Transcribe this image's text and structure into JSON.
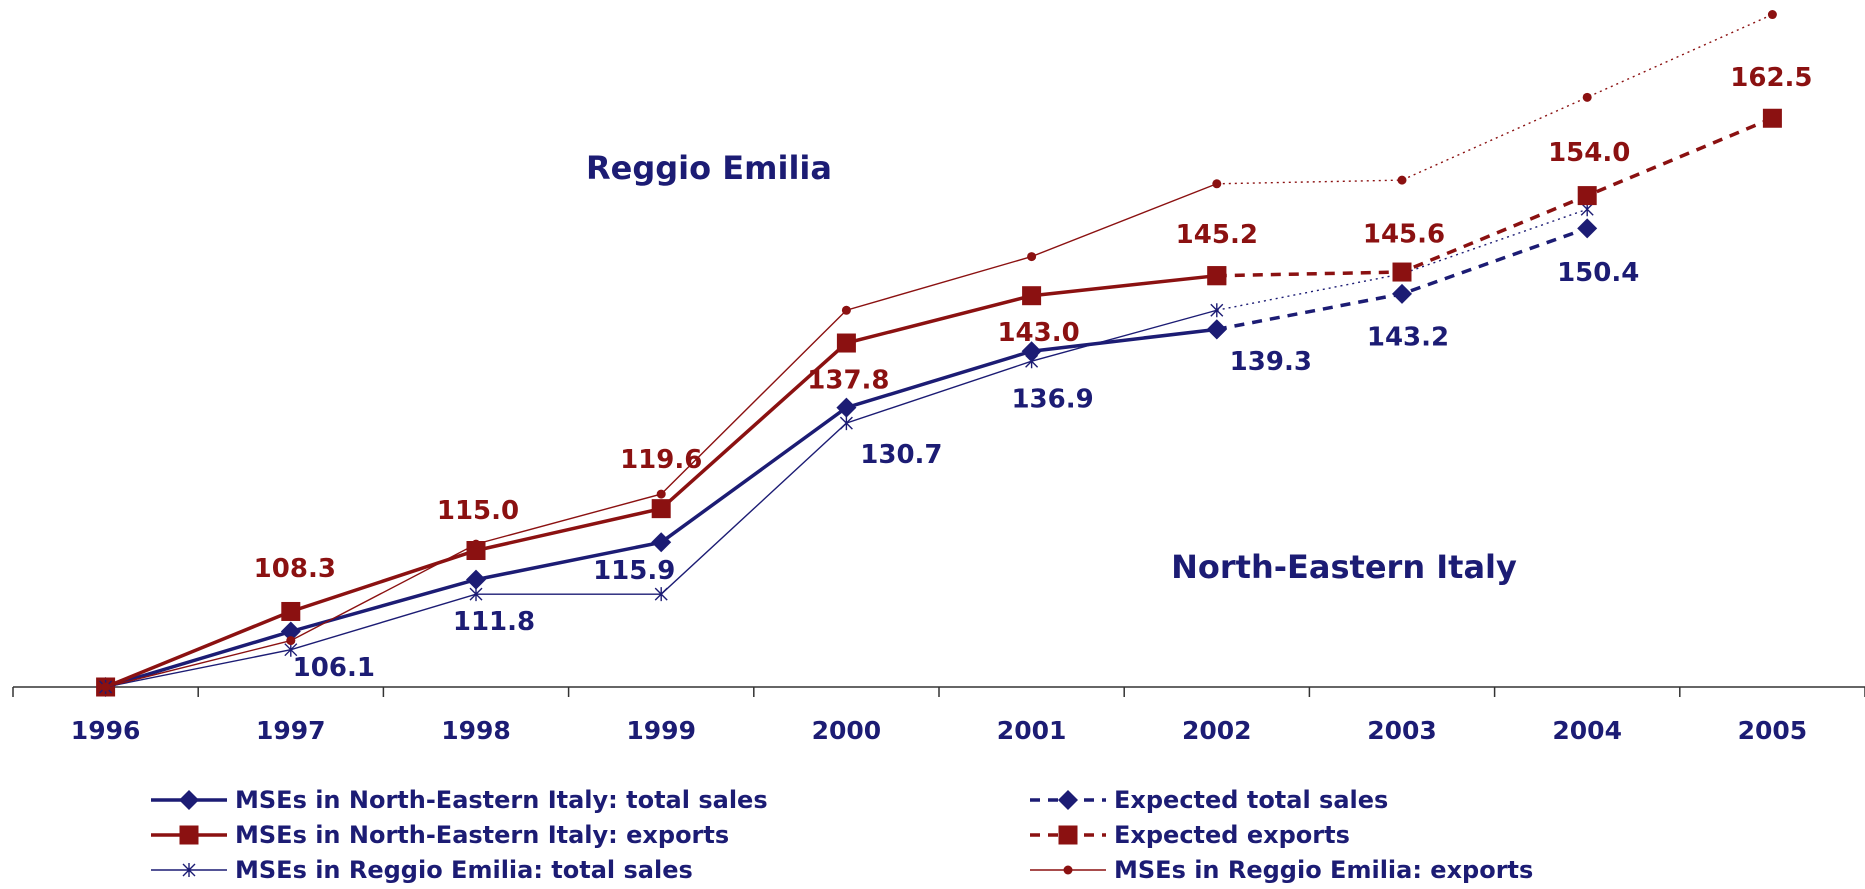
{
  "chart_data": {
    "type": "line",
    "categories": [
      "1996",
      "1997",
      "1998",
      "1999",
      "2000",
      "2001",
      "2002",
      "2003",
      "2004",
      "2005"
    ],
    "ylim": [
      100,
      175
    ],
    "annotations": [
      {
        "text": "Reggio Emilia",
        "color": "#1c1c74"
      },
      {
        "text": "North-Eastern Italy",
        "color": "#1c1c74"
      }
    ],
    "series": [
      {
        "name": "MSEs in North-Eastern Italy: total sales",
        "color": "#1c1c74",
        "marker": "diamond",
        "width": "thick",
        "dash": "solid",
        "values": [
          100,
          106.1,
          111.8,
          115.9,
          130.7,
          136.9,
          139.3,
          null,
          null,
          null
        ],
        "value_labels": [
          null,
          "106.1",
          "111.8",
          "115.9",
          "130.7",
          "136.9",
          "139.3",
          null,
          null,
          null
        ]
      },
      {
        "name": "MSEs in North-Eastern Italy: exports",
        "color": "#8b1111",
        "marker": "square",
        "width": "thick",
        "dash": "solid",
        "values": [
          100,
          108.3,
          115.0,
          119.6,
          137.8,
          143.0,
          145.2,
          null,
          null,
          null
        ],
        "value_labels": [
          null,
          "108.3",
          "115.0",
          "119.6",
          "137.8",
          "143.0",
          "145.2",
          null,
          null,
          null
        ]
      },
      {
        "name": "MSEs in Reggio Emilia: total sales",
        "color": "#1c1c74",
        "marker": "star",
        "width": "thin",
        "dash": "solid",
        "dotted_from": "2002",
        "values": [
          100,
          104.1,
          110.2,
          110.2,
          129.0,
          135.8,
          141.4,
          145.4,
          152.5,
          null
        ]
      },
      {
        "name": "Expected total sales",
        "color": "#1c1c74",
        "marker": "diamond",
        "width": "thick",
        "dash": "dashed",
        "values": [
          null,
          null,
          null,
          null,
          null,
          null,
          139.3,
          143.2,
          150.4,
          null
        ],
        "value_labels": [
          null,
          null,
          null,
          null,
          null,
          null,
          null,
          "143.2",
          "150.4",
          null
        ]
      },
      {
        "name": "Expected exports",
        "color": "#8b1111",
        "marker": "square",
        "width": "thick",
        "dash": "dashed",
        "values": [
          null,
          null,
          null,
          null,
          null,
          null,
          145.2,
          145.6,
          154.0,
          162.5
        ],
        "value_labels": [
          null,
          null,
          null,
          null,
          null,
          null,
          null,
          "145.6",
          "154.0",
          "162.5"
        ]
      },
      {
        "name": "MSEs in Reggio Emilia: exports",
        "color": "#8b1111",
        "marker": "dot",
        "width": "thin",
        "dash": "solid",
        "dotted_from": "2002",
        "values": [
          100,
          105.1,
          115.7,
          121.2,
          141.4,
          147.3,
          155.3,
          155.7,
          164.8,
          173.9
        ]
      }
    ]
  }
}
